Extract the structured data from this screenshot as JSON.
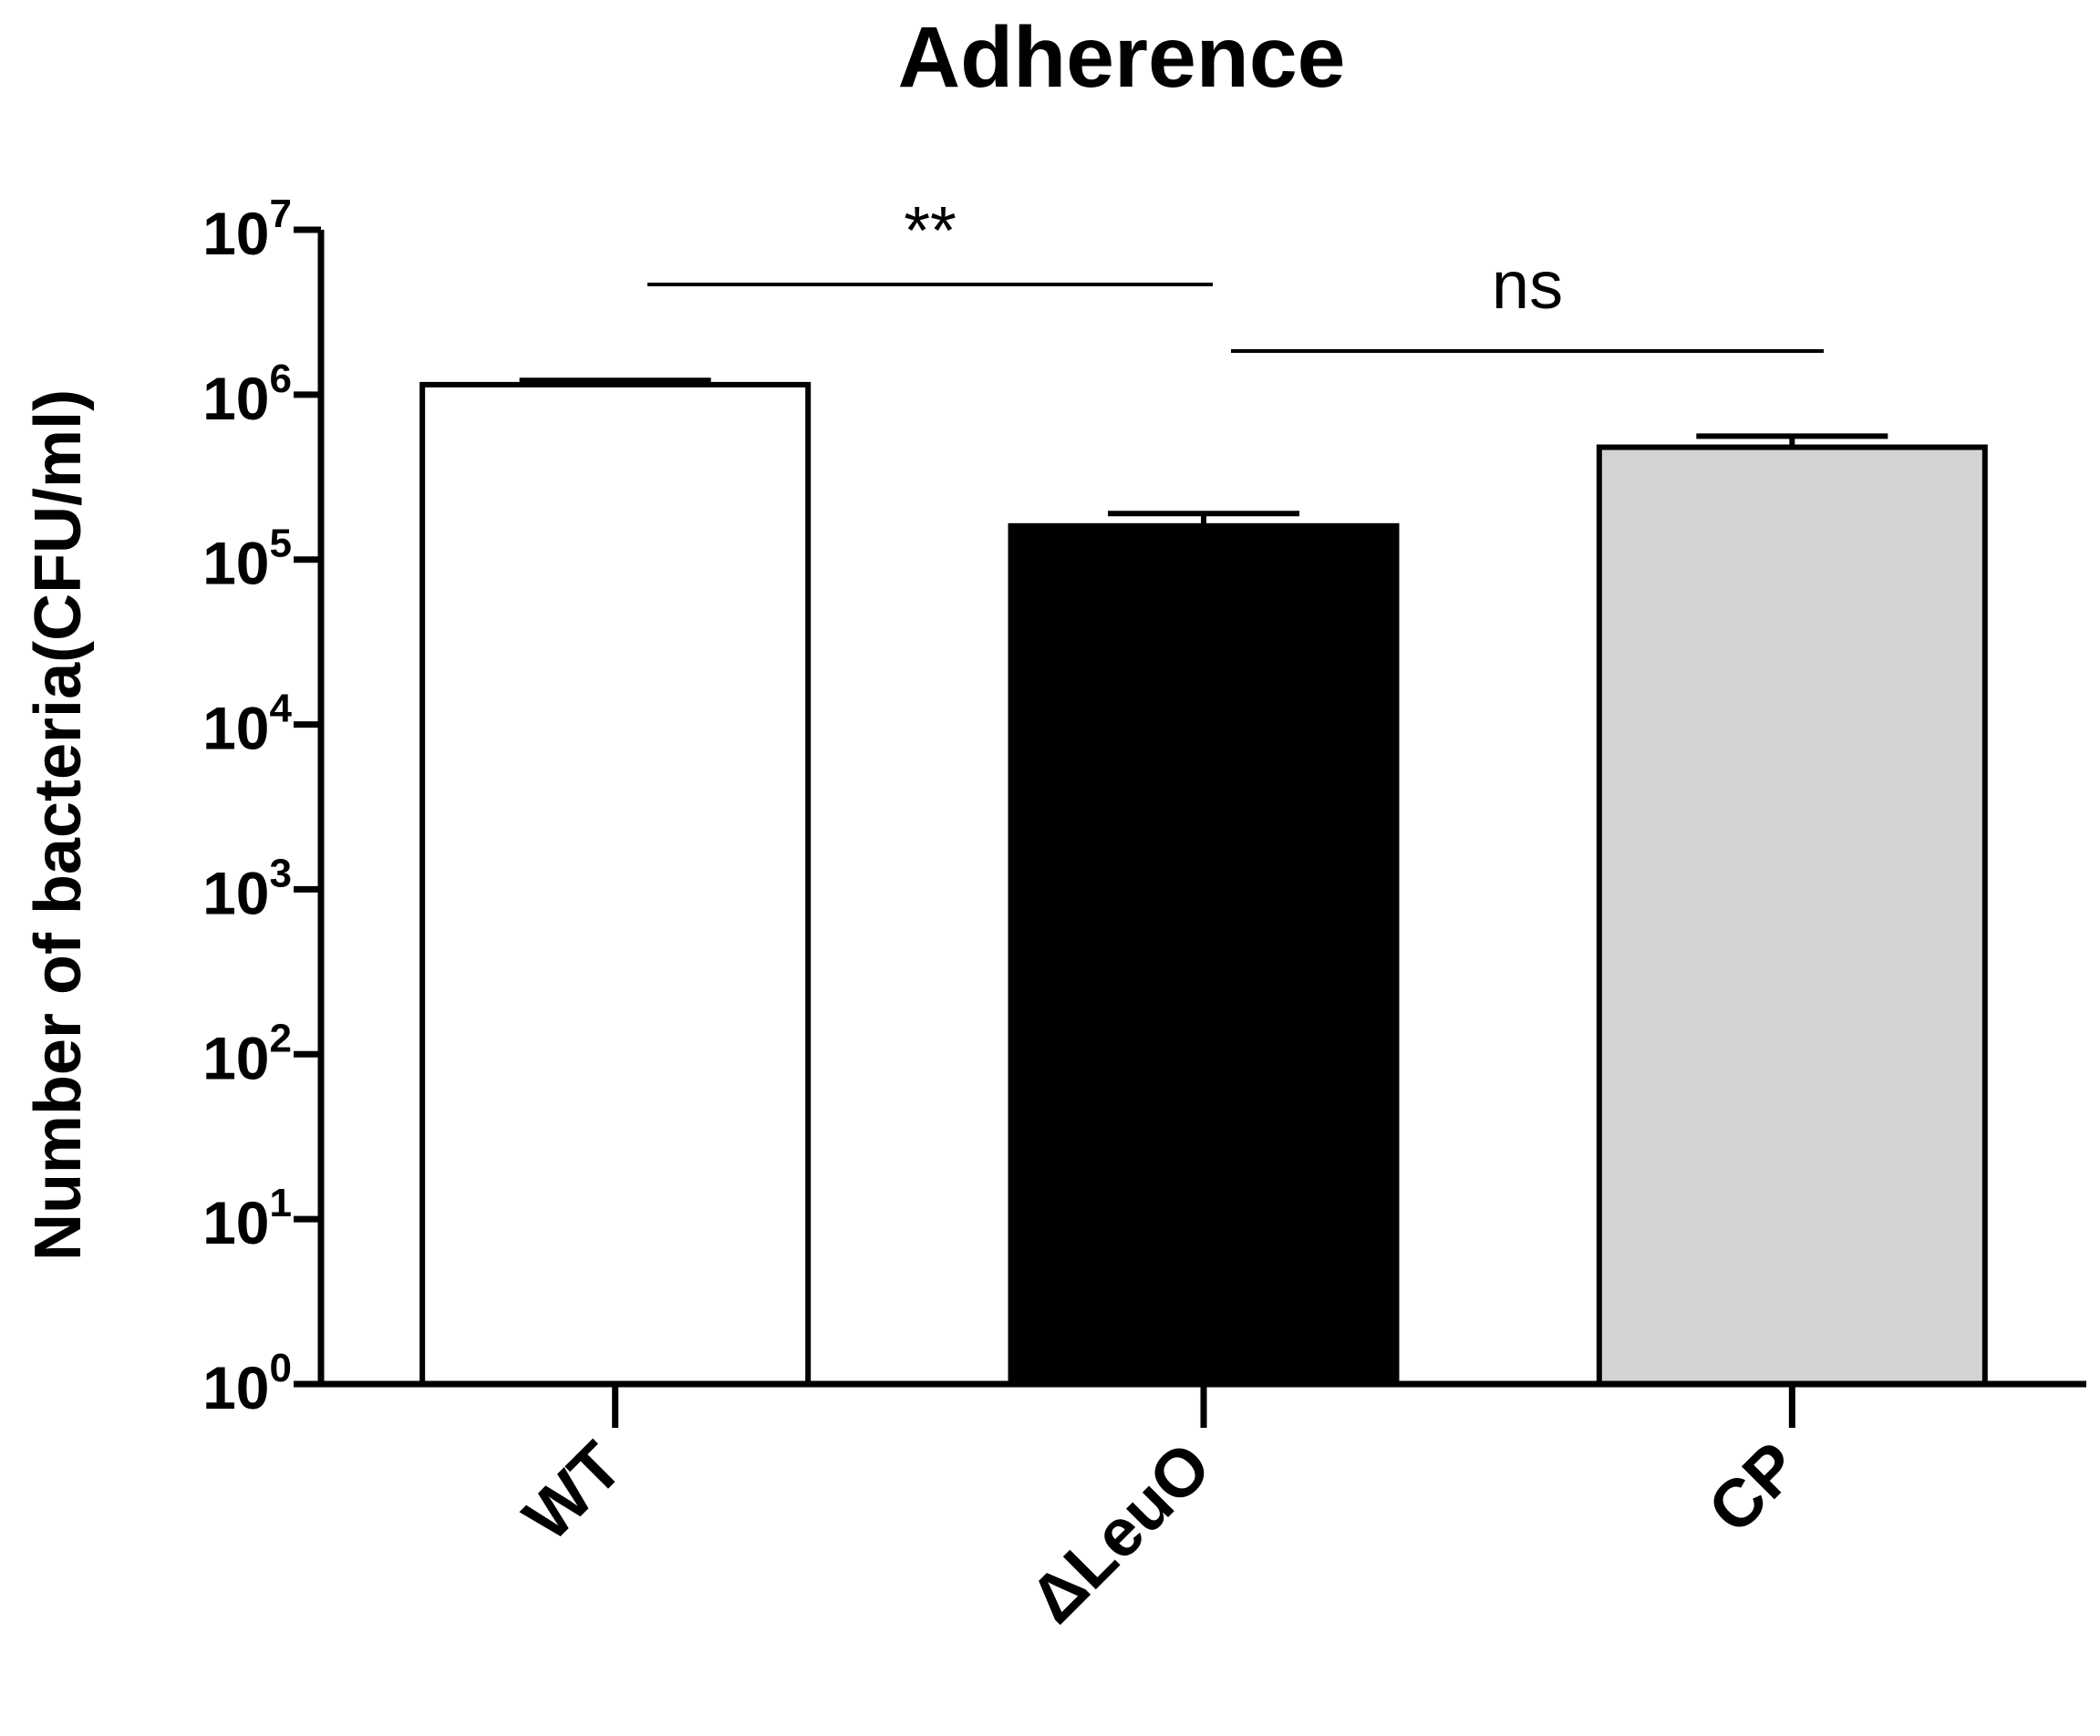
{
  "chart_data": {
    "type": "bar",
    "title": "Adherence",
    "xlabel": "",
    "ylabel": "Number of bacteria(CFU/ml)",
    "yscale": "log",
    "ylim": [
      1,
      10000000
    ],
    "yticks": [
      {
        "base": "10",
        "exp": "0",
        "value": 1
      },
      {
        "base": "10",
        "exp": "1",
        "value": 10
      },
      {
        "base": "10",
        "exp": "2",
        "value": 100
      },
      {
        "base": "10",
        "exp": "3",
        "value": 1000
      },
      {
        "base": "10",
        "exp": "4",
        "value": 10000
      },
      {
        "base": "10",
        "exp": "5",
        "value": 100000
      },
      {
        "base": "10",
        "exp": "6",
        "value": 1000000
      },
      {
        "base": "10",
        "exp": "7",
        "value": 10000000
      }
    ],
    "categories": [
      "WT",
      "ΔLeuO",
      "CP"
    ],
    "values": [
      1150000,
      160000,
      480000
    ],
    "errors_upper": [
      1220000,
      190000,
      560000
    ],
    "colors": [
      "#ffffff",
      "#000000",
      "#d3d3d3"
    ],
    "significance": [
      {
        "from": 0,
        "to": 1,
        "label": "**"
      },
      {
        "from": 1,
        "to": 2,
        "label": "ns"
      }
    ],
    "grid": false,
    "legend": "none"
  }
}
